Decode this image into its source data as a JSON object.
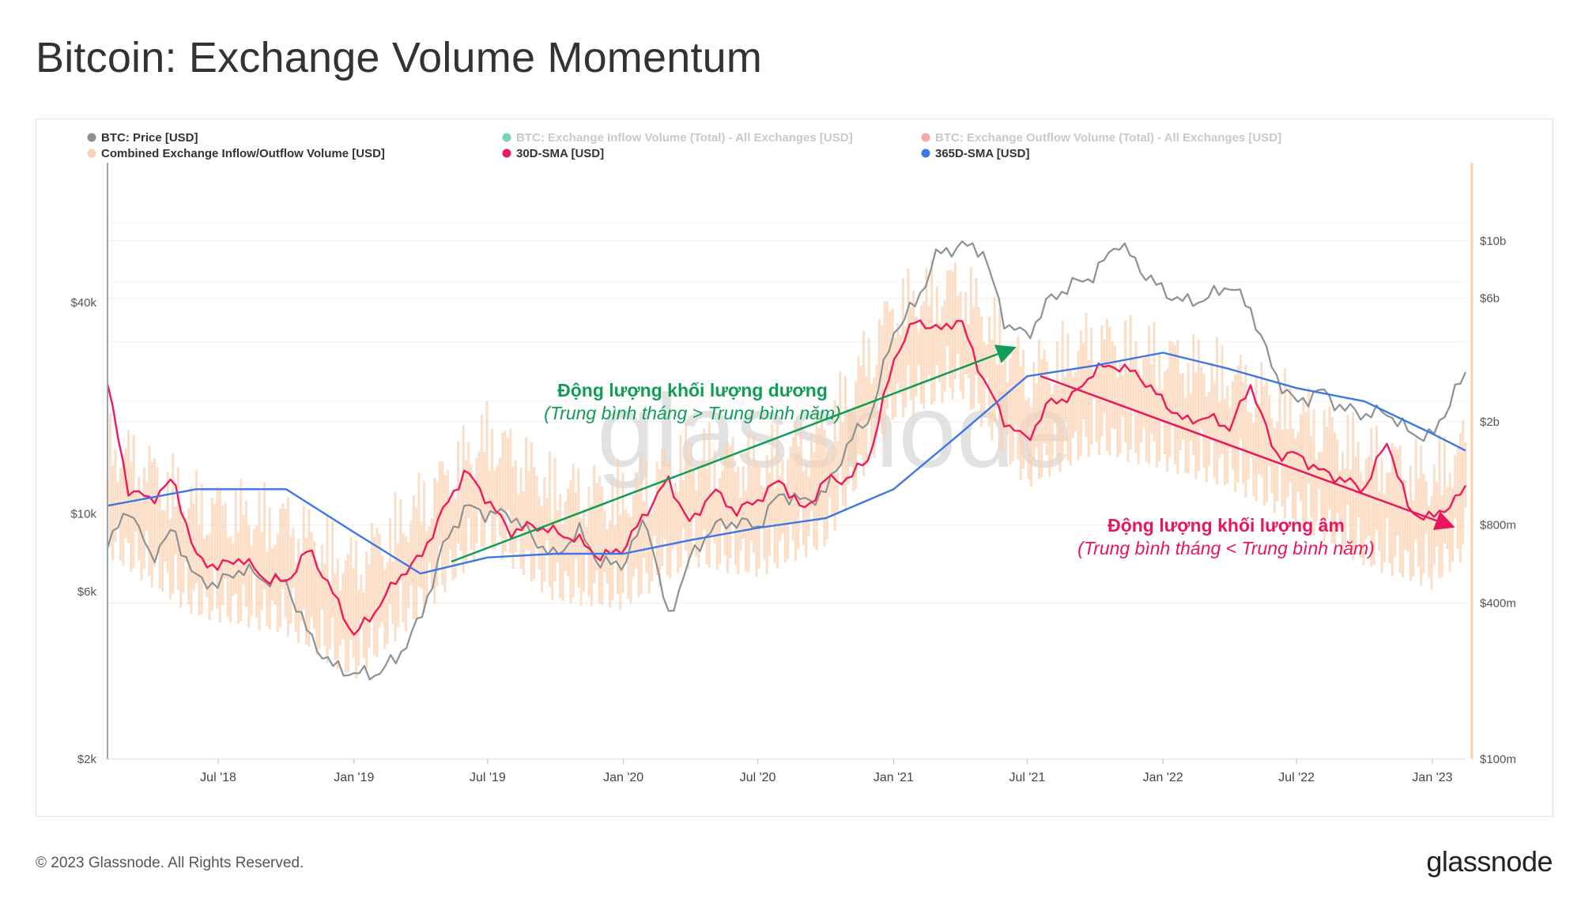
{
  "title": "Bitcoin: Exchange Volume Momentum",
  "footer": {
    "copyright": "© 2023 Glassnode. All Rights Reserved.",
    "logo": "glassnode"
  },
  "watermark": "glassnode",
  "colors": {
    "price": "#8a9294",
    "inflow": "#10b26c",
    "outflow": "#f0645a",
    "combined": "#fbd3b4",
    "sma30": "#f0195a",
    "sma365": "#3b78e7",
    "positive_annotation": "#0f9d58",
    "negative_annotation": "#e8175d"
  },
  "legend": [
    {
      "label": "BTC: Price [USD]",
      "color": "#8a9294",
      "faded": false
    },
    {
      "label": "BTC: Exchange Inflow Volume (Total) - All Exchanges [USD]",
      "color": "#10b26c",
      "faded": true
    },
    {
      "label": "BTC: Exchange Outflow Volume (Total) - All Exchanges [USD]",
      "color": "#f0645a",
      "faded": true
    },
    {
      "label": "Combined Exchange Inflow/Outflow Volume [USD]",
      "color": "#fbd3b4",
      "faded": false
    },
    {
      "label": "30D-SMA [USD]",
      "color": "#f0195a",
      "faded": false
    },
    {
      "label": "365D-SMA [USD]",
      "color": "#3b78e7",
      "faded": false
    }
  ],
  "annotations": {
    "positive": {
      "title": "Động lượng khối lượng dương",
      "subtitle": "(Trung bình tháng > Trung bình năm)"
    },
    "negative": {
      "title": "Động lượng khối lượng âm",
      "subtitle": "(Trung bình tháng < Trung bình năm)"
    }
  },
  "chart_data": {
    "type": "line",
    "x_ticks": [
      "Jul '18",
      "Jan '19",
      "Jul '19",
      "Jan '20",
      "Jul '20",
      "Jan '21",
      "Jul '21",
      "Jan '22",
      "Jul '22",
      "Jan '23"
    ],
    "x_range": [
      "2018-02-01",
      "2023-02-15"
    ],
    "y_left": {
      "label": "BTC Price",
      "scale": "log",
      "ticks": [
        "$2k",
        "$6k",
        "$10k",
        "$40k"
      ],
      "tick_values": [
        2000,
        6000,
        10000,
        40000
      ],
      "range": [
        2000,
        100000
      ]
    },
    "y_right": {
      "label": "Volume",
      "scale": "log",
      "ticks": [
        "$100m",
        "$400m",
        "$800m",
        "$2b",
        "$6b",
        "$10b"
      ],
      "tick_values": [
        100000000,
        400000000,
        800000000,
        2000000000,
        6000000000,
        10000000000
      ],
      "range": [
        100000000,
        20000000000
      ]
    },
    "grid": true,
    "legend_position": "top",
    "series": [
      {
        "name": "BTC: Price [USD]",
        "axis": "left",
        "x": [
          "2018-02-01",
          "2018-03-01",
          "2018-04-01",
          "2018-05-01",
          "2018-06-01",
          "2018-07-01",
          "2018-08-01",
          "2018-09-01",
          "2018-10-01",
          "2018-11-01",
          "2018-12-01",
          "2019-01-01",
          "2019-02-01",
          "2019-03-01",
          "2019-04-01",
          "2019-05-01",
          "2019-06-01",
          "2019-07-01",
          "2019-08-01",
          "2019-09-01",
          "2019-10-01",
          "2019-11-01",
          "2019-12-01",
          "2020-01-01",
          "2020-02-01",
          "2020-03-01",
          "2020-04-01",
          "2020-05-01",
          "2020-06-01",
          "2020-07-01",
          "2020-08-01",
          "2020-09-01",
          "2020-10-01",
          "2020-11-01",
          "2020-12-01",
          "2021-01-01",
          "2021-02-01",
          "2021-03-01",
          "2021-04-01",
          "2021-05-01",
          "2021-06-01",
          "2021-07-01",
          "2021-08-01",
          "2021-09-01",
          "2021-10-01",
          "2021-11-01",
          "2021-12-01",
          "2022-01-01",
          "2022-02-01",
          "2022-03-01",
          "2022-04-01",
          "2022-05-01",
          "2022-06-01",
          "2022-07-01",
          "2022-08-01",
          "2022-09-01",
          "2022-10-01",
          "2022-11-01",
          "2022-12-01",
          "2023-01-01",
          "2023-02-01",
          "2023-02-15"
        ],
        "values": [
          8000,
          10500,
          7500,
          9000,
          6500,
          6300,
          7000,
          6500,
          6400,
          4500,
          3700,
          3500,
          3500,
          3900,
          5000,
          8000,
          10500,
          10000,
          10000,
          8500,
          7500,
          9000,
          7200,
          7200,
          9800,
          5000,
          7500,
          9200,
          9500,
          9200,
          11500,
          10800,
          11500,
          16000,
          19000,
          33000,
          40000,
          55000,
          58000,
          57000,
          35000,
          32000,
          41000,
          45000,
          48000,
          60000,
          50000,
          43000,
          40000,
          41000,
          45000,
          38000,
          25000,
          20500,
          22500,
          20000,
          19200,
          19500,
          17000,
          16500,
          22500,
          24500
        ]
      },
      {
        "name": "30D-SMA [USD]",
        "axis": "right",
        "x": [
          "2018-02-01",
          "2018-03-01",
          "2018-04-01",
          "2018-05-01",
          "2018-06-01",
          "2018-07-01",
          "2018-08-01",
          "2018-09-01",
          "2018-10-01",
          "2018-11-01",
          "2018-12-01",
          "2019-01-01",
          "2019-02-01",
          "2019-03-01",
          "2019-04-01",
          "2019-05-01",
          "2019-06-01",
          "2019-07-01",
          "2019-08-01",
          "2019-09-01",
          "2019-10-01",
          "2019-11-01",
          "2019-12-01",
          "2020-01-01",
          "2020-02-01",
          "2020-03-01",
          "2020-04-01",
          "2020-05-01",
          "2020-06-01",
          "2020-07-01",
          "2020-08-01",
          "2020-09-01",
          "2020-10-01",
          "2020-11-01",
          "2020-12-01",
          "2021-01-01",
          "2021-02-01",
          "2021-03-01",
          "2021-04-01",
          "2021-05-01",
          "2021-06-01",
          "2021-07-01",
          "2021-08-01",
          "2021-09-01",
          "2021-10-01",
          "2021-11-01",
          "2021-12-01",
          "2022-01-01",
          "2022-02-01",
          "2022-03-01",
          "2022-04-01",
          "2022-05-01",
          "2022-06-01",
          "2022-07-01",
          "2022-08-01",
          "2022-09-01",
          "2022-10-01",
          "2022-11-01",
          "2022-12-01",
          "2023-01-01",
          "2023-02-01",
          "2023-02-15"
        ],
        "values": [
          2800000000,
          1100000000,
          1000000000,
          1200000000,
          600000000,
          550000000,
          600000000,
          500000000,
          480000000,
          650000000,
          450000000,
          300000000,
          380000000,
          500000000,
          600000000,
          900000000,
          1300000000,
          1000000000,
          750000000,
          800000000,
          750000000,
          700000000,
          600000000,
          650000000,
          900000000,
          1200000000,
          800000000,
          1100000000,
          900000000,
          1000000000,
          1200000000,
          900000000,
          1200000000,
          1200000000,
          1500000000,
          3500000000,
          5000000000,
          4500000000,
          5000000000,
          3000000000,
          2000000000,
          1700000000,
          2400000000,
          2500000000,
          3200000000,
          3300000000,
          3000000000,
          2400000000,
          2000000000,
          2100000000,
          1900000000,
          2800000000,
          1500000000,
          1500000000,
          1300000000,
          1200000000,
          1100000000,
          1700000000,
          900000000,
          850000000,
          1000000000,
          1100000000
        ]
      },
      {
        "name": "365D-SMA [USD]",
        "axis": "right",
        "x": [
          "2018-02-01",
          "2018-06-01",
          "2018-10-01",
          "2019-01-01",
          "2019-04-01",
          "2019-07-01",
          "2019-10-01",
          "2020-01-01",
          "2020-04-01",
          "2020-07-01",
          "2020-10-01",
          "2021-01-01",
          "2021-04-01",
          "2021-07-01",
          "2021-10-01",
          "2022-01-01",
          "2022-04-01",
          "2022-07-01",
          "2022-10-01",
          "2023-01-01",
          "2023-02-15"
        ],
        "values": [
          950000000,
          1100000000,
          1100000000,
          750000000,
          520000000,
          600000000,
          620000000,
          620000000,
          700000000,
          780000000,
          850000000,
          1100000000,
          1800000000,
          3000000000,
          3300000000,
          3700000000,
          3200000000,
          2700000000,
          2400000000,
          1800000000,
          1550000000
        ]
      },
      {
        "name": "Combined Exchange Inflow/Outflow Volume [USD]",
        "axis": "right",
        "style": "area",
        "x": [
          "2018-02-01",
          "2018-06-01",
          "2018-10-01",
          "2019-01-01",
          "2019-04-01",
          "2019-07-01",
          "2019-10-01",
          "2020-01-01",
          "2020-04-01",
          "2020-07-01",
          "2020-10-01",
          "2021-01-01",
          "2021-04-01",
          "2021-07-01",
          "2021-10-01",
          "2022-01-01",
          "2022-04-01",
          "2022-07-01",
          "2022-10-01",
          "2023-01-01",
          "2023-02-15"
        ],
        "values": [
          1200000000,
          700000000,
          600000000,
          400000000,
          700000000,
          1300000000,
          800000000,
          750000000,
          1100000000,
          1000000000,
          1300000000,
          4000000000,
          5000000000,
          2200000000,
          3000000000,
          2600000000,
          2200000000,
          1600000000,
          1100000000,
          900000000,
          1200000000
        ]
      }
    ]
  }
}
